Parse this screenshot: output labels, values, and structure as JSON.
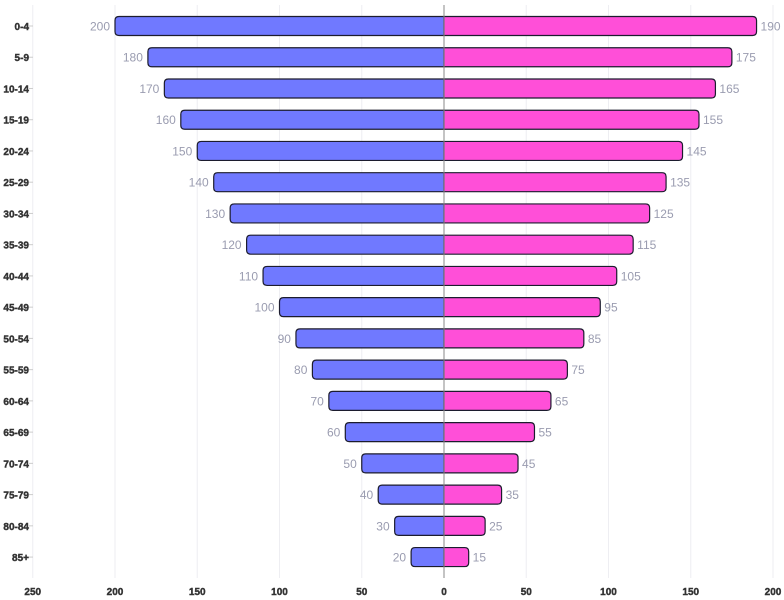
{
  "chart_data": {
    "type": "bar",
    "orientation": "horizontal",
    "layout": "population-pyramid",
    "categories": [
      "0-4",
      "5-9",
      "10-14",
      "15-19",
      "20-24",
      "25-29",
      "30-34",
      "35-39",
      "40-44",
      "45-49",
      "50-54",
      "55-59",
      "60-64",
      "65-69",
      "70-74",
      "75-79",
      "80-84",
      "85+"
    ],
    "series": [
      {
        "side": "left",
        "color": "#7079ff",
        "values": [
          200,
          180,
          170,
          160,
          150,
          140,
          130,
          120,
          110,
          100,
          90,
          80,
          70,
          60,
          50,
          40,
          30,
          20
        ]
      },
      {
        "side": "right",
        "color": "#ff4fd8",
        "values": [
          190,
          175,
          165,
          155,
          145,
          135,
          125,
          115,
          105,
          95,
          85,
          75,
          65,
          55,
          45,
          35,
          25,
          15
        ]
      }
    ],
    "xlim": [
      -250,
      200
    ],
    "x_tick_labels": [
      "250",
      "200",
      "150",
      "100",
      "50",
      "0",
      "50",
      "100",
      "150",
      "200"
    ],
    "x_ticks": [
      -250,
      -200,
      -150,
      -100,
      -50,
      0,
      50,
      100,
      150,
      200
    ],
    "grid": true,
    "data_labels": true,
    "title": "",
    "xlabel": "",
    "ylabel": ""
  }
}
